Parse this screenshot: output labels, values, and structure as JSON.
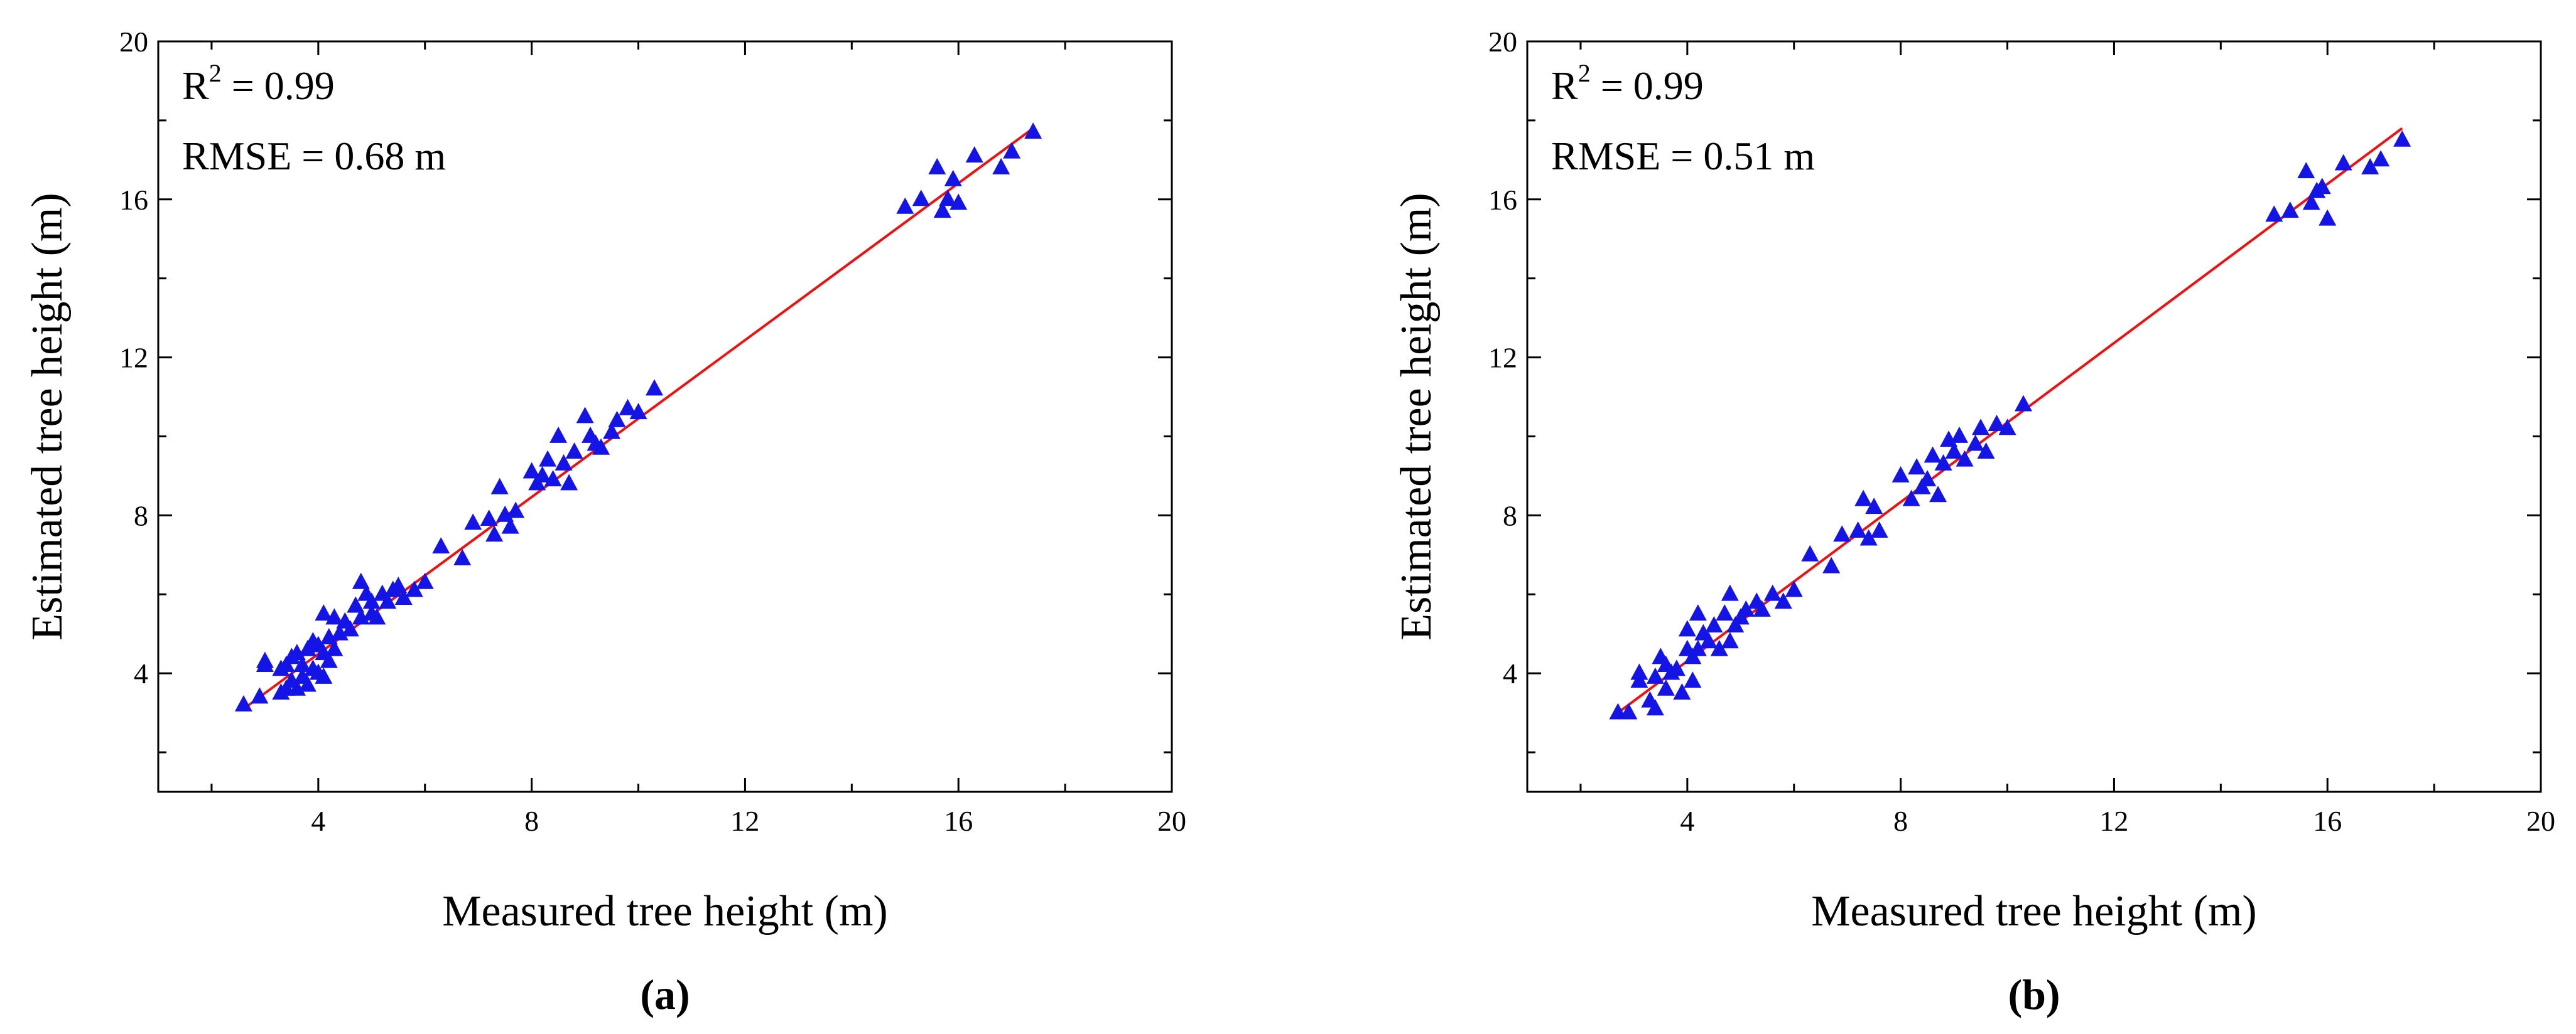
{
  "colors": {
    "points": "#1414e6",
    "fit_line": "#ee1111",
    "axes": "#000000"
  },
  "chart_data": [
    {
      "type": "scatter",
      "panel_label": "(a)",
      "xlabel": "Measured tree height (m)",
      "ylabel": "Estimated tree height (m)",
      "xlim": [
        1,
        20
      ],
      "ylim": [
        1,
        20
      ],
      "xticks": [
        4,
        8,
        12,
        16,
        20
      ],
      "yticks": [
        4,
        8,
        12,
        16,
        20
      ],
      "annotations": {
        "r2_prefix": "R",
        "r2_exp": "2",
        "r2_value": " = 0.99",
        "rmse": "RMSE = 0.68 m"
      },
      "fit_line": {
        "x": [
          2.6,
          17.4
        ],
        "y": [
          3.1,
          17.8
        ]
      },
      "marker": "triangle",
      "x": [
        2.6,
        2.9,
        3.0,
        3.0,
        3.3,
        3.3,
        3.4,
        3.4,
        3.5,
        3.5,
        3.6,
        3.6,
        3.7,
        3.7,
        3.8,
        3.8,
        3.9,
        3.9,
        4.0,
        4.0,
        4.1,
        4.1,
        4.1,
        4.2,
        4.2,
        4.3,
        4.3,
        4.4,
        4.5,
        4.6,
        4.7,
        4.8,
        4.8,
        4.9,
        5.0,
        5.0,
        5.1,
        5.2,
        5.3,
        5.4,
        5.5,
        5.6,
        5.8,
        6.0,
        6.3,
        6.7,
        6.9,
        7.2,
        7.3,
        7.4,
        7.5,
        7.6,
        7.7,
        8.0,
        8.1,
        8.2,
        8.3,
        8.4,
        8.5,
        8.6,
        8.7,
        8.8,
        9.0,
        9.1,
        9.2,
        9.3,
        9.5,
        9.6,
        9.8,
        10.0,
        10.3,
        15.0,
        15.3,
        15.6,
        15.7,
        15.8,
        15.9,
        16.0,
        16.3,
        16.8,
        17.0,
        17.4
      ],
      "y": [
        3.2,
        3.4,
        4.2,
        4.3,
        3.5,
        4.1,
        3.6,
        4.2,
        3.8,
        4.4,
        3.6,
        4.5,
        3.9,
        4.2,
        3.7,
        4.6,
        4.1,
        4.8,
        4.0,
        4.7,
        3.9,
        4.5,
        5.5,
        4.3,
        4.9,
        4.6,
        5.4,
        5.0,
        5.3,
        5.1,
        5.7,
        5.4,
        6.3,
        6.0,
        5.5,
        5.8,
        5.4,
        6.0,
        5.8,
        6.1,
        6.2,
        5.9,
        6.1,
        6.3,
        7.2,
        6.9,
        7.8,
        7.9,
        7.5,
        8.7,
        8.0,
        7.7,
        8.1,
        9.1,
        8.8,
        9.0,
        9.4,
        8.9,
        10.0,
        9.3,
        8.8,
        9.6,
        10.5,
        10.0,
        9.8,
        9.7,
        10.1,
        10.4,
        10.7,
        10.6,
        11.2,
        15.8,
        16.0,
        16.8,
        15.7,
        16.0,
        16.5,
        15.9,
        17.1,
        16.8,
        17.2,
        17.7
      ]
    },
    {
      "type": "scatter",
      "panel_label": "(b)",
      "xlabel": "Measured tree height (m)",
      "ylabel": "Estimated tree height (m)",
      "xlim": [
        1,
        20
      ],
      "ylim": [
        1,
        20
      ],
      "xticks": [
        4,
        8,
        12,
        16,
        20
      ],
      "yticks": [
        4,
        8,
        12,
        16,
        20
      ],
      "annotations": {
        "r2_prefix": "R",
        "r2_exp": "2",
        "r2_value": " = 0.99",
        "rmse": "RMSE = 0.51 m"
      },
      "fit_line": {
        "x": [
          2.6,
          17.4
        ],
        "y": [
          2.9,
          17.8
        ]
      },
      "marker": "triangle",
      "x": [
        2.7,
        2.9,
        3.1,
        3.1,
        3.3,
        3.4,
        3.4,
        3.5,
        3.6,
        3.6,
        3.7,
        3.8,
        3.9,
        4.0,
        4.0,
        4.1,
        4.1,
        4.2,
        4.2,
        4.3,
        4.4,
        4.5,
        4.6,
        4.7,
        4.8,
        4.8,
        4.9,
        5.0,
        5.1,
        5.3,
        5.4,
        5.6,
        5.8,
        6.0,
        6.3,
        6.7,
        6.9,
        7.2,
        7.3,
        7.4,
        7.5,
        7.6,
        8.0,
        8.2,
        8.3,
        8.4,
        8.5,
        8.6,
        8.7,
        8.8,
        8.9,
        9.0,
        9.1,
        9.2,
        9.4,
        9.5,
        9.6,
        9.8,
        10.0,
        10.3,
        15.0,
        15.3,
        15.6,
        15.7,
        15.8,
        15.9,
        16.0,
        16.3,
        16.8,
        17.0,
        17.4
      ],
      "y": [
        3.0,
        3.0,
        3.8,
        4.0,
        3.3,
        3.1,
        3.9,
        4.4,
        3.6,
        4.2,
        4.0,
        4.1,
        3.5,
        4.6,
        5.1,
        3.8,
        4.4,
        5.5,
        4.6,
        5.0,
        4.8,
        5.2,
        4.6,
        5.5,
        4.8,
        6.0,
        5.2,
        5.4,
        5.6,
        5.8,
        5.6,
        6.0,
        5.8,
        6.1,
        7.0,
        6.7,
        7.5,
        7.6,
        8.4,
        7.4,
        8.2,
        7.6,
        9.0,
        8.4,
        9.2,
        8.7,
        8.9,
        9.5,
        8.5,
        9.3,
        9.9,
        9.6,
        10.0,
        9.4,
        9.8,
        10.2,
        9.6,
        10.3,
        10.2,
        10.8,
        15.6,
        15.7,
        16.7,
        15.9,
        16.2,
        16.3,
        15.5,
        16.9,
        16.8,
        17.0,
        17.5
      ]
    }
  ]
}
